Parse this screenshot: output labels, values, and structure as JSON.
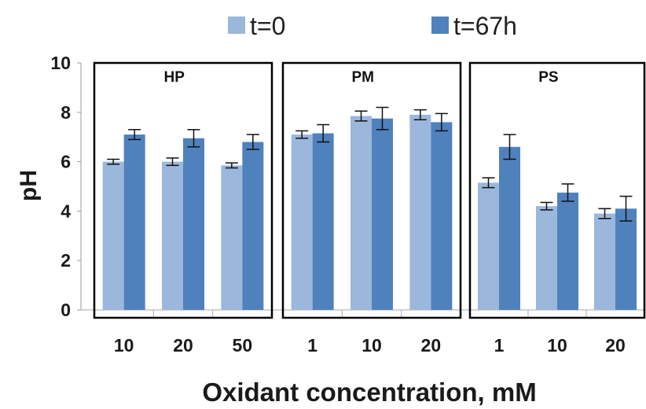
{
  "chart_data": {
    "type": "bar",
    "xlabel": "Oxidant concentration, mM",
    "ylabel": "pH",
    "ylim": [
      0,
      10
    ],
    "yticks": [
      "0",
      "2",
      "4",
      "6",
      "8",
      "10"
    ],
    "grid": false,
    "legend_position": "top",
    "series_names": [
      "t=0",
      "t=67h"
    ],
    "colors": {
      "t0": "#9bb7dc",
      "t67": "#4f81bd"
    },
    "panels": [
      {
        "title": "HP",
        "categories": [
          "10",
          "20",
          "50"
        ],
        "series": [
          {
            "name": "t=0",
            "values": [
              6.0,
              6.0,
              5.85
            ],
            "errors": [
              0.1,
              0.15,
              0.1
            ]
          },
          {
            "name": "t=67h",
            "values": [
              7.1,
              6.95,
              6.8
            ],
            "errors": [
              0.2,
              0.35,
              0.3
            ]
          }
        ]
      },
      {
        "title": "PM",
        "categories": [
          "1",
          "10",
          "20"
        ],
        "series": [
          {
            "name": "t=0",
            "values": [
              7.1,
              7.85,
              7.9
            ],
            "errors": [
              0.15,
              0.2,
              0.2
            ]
          },
          {
            "name": "t=67h",
            "values": [
              7.15,
              7.75,
              7.6
            ],
            "errors": [
              0.35,
              0.45,
              0.35
            ]
          }
        ]
      },
      {
        "title": "PS",
        "categories": [
          "1",
          "10",
          "20"
        ],
        "series": [
          {
            "name": "t=0",
            "values": [
              5.15,
              4.2,
              3.9
            ],
            "errors": [
              0.2,
              0.15,
              0.2
            ]
          },
          {
            "name": "t=67h",
            "values": [
              6.6,
              4.75,
              4.1
            ],
            "errors": [
              0.5,
              0.35,
              0.5
            ]
          }
        ]
      }
    ]
  }
}
